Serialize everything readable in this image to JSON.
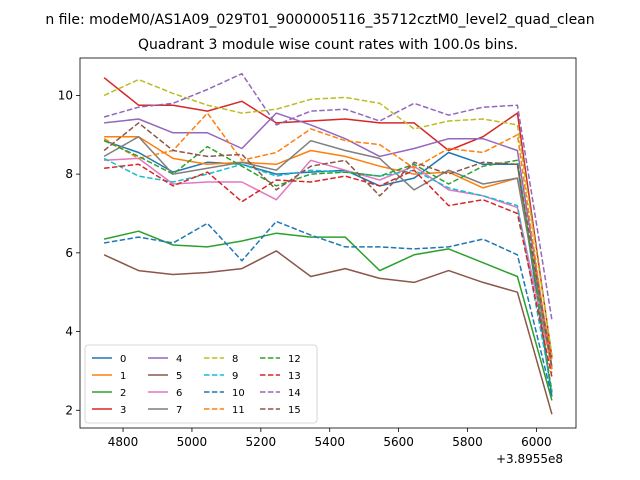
{
  "suptitle": "n file: modeM0/AS1A09_029T01_9000005116_35712cztM0_level2_quad_clean",
  "chart_data": {
    "type": "line",
    "title": "Quadrant 3 module wise count rates with 100.0s bins.",
    "xlabel": "",
    "ylabel": "",
    "x_offset_label": "+3.8955e8",
    "x": [
      4745,
      4845,
      4945,
      5045,
      5145,
      5245,
      5345,
      5445,
      5545,
      5645,
      5745,
      5845,
      5945,
      6045
    ],
    "xlim": [
      4675,
      6115
    ],
    "ylim": [
      1.55,
      10.95
    ],
    "xticks": [
      4800,
      5000,
      5200,
      5400,
      5600,
      5800,
      6000
    ],
    "yticks": [
      2,
      4,
      6,
      8,
      10
    ],
    "grid": false,
    "legend": {
      "placement": "lower-left",
      "columns": 4
    },
    "series": [
      {
        "name": "0",
        "color": "#1f77b4",
        "dash": "solid",
        "values": [
          8.85,
          8.55,
          8.05,
          8.3,
          8.25,
          8.0,
          8.05,
          8.1,
          7.7,
          7.9,
          8.55,
          8.25,
          8.25,
          2.35
        ]
      },
      {
        "name": "1",
        "color": "#ff7f0e",
        "dash": "solid",
        "values": [
          8.95,
          8.95,
          8.4,
          8.25,
          8.3,
          8.25,
          8.6,
          8.45,
          8.2,
          8.0,
          8.05,
          7.65,
          7.9,
          3.3
        ]
      },
      {
        "name": "2",
        "color": "#2ca02c",
        "dash": "solid",
        "values": [
          6.35,
          6.55,
          6.2,
          6.15,
          6.3,
          6.5,
          6.4,
          6.4,
          5.55,
          5.95,
          6.1,
          5.75,
          5.4,
          2.25
        ]
      },
      {
        "name": "3",
        "color": "#d62728",
        "dash": "solid",
        "values": [
          10.45,
          9.75,
          9.75,
          9.6,
          9.85,
          9.3,
          9.35,
          9.4,
          9.3,
          9.3,
          8.6,
          8.95,
          9.55,
          3.35
        ]
      },
      {
        "name": "4",
        "color": "#9467bd",
        "dash": "solid",
        "values": [
          9.3,
          9.4,
          9.05,
          9.05,
          8.65,
          9.55,
          9.25,
          8.9,
          8.45,
          8.65,
          8.9,
          8.9,
          8.6,
          3.1
        ]
      },
      {
        "name": "5",
        "color": "#8c564b",
        "dash": "solid",
        "values": [
          5.95,
          5.55,
          5.45,
          5.5,
          5.6,
          6.05,
          5.4,
          5.6,
          5.35,
          5.25,
          5.55,
          5.25,
          5.0,
          1.9
        ]
      },
      {
        "name": "6",
        "color": "#e377c2",
        "dash": "solid",
        "values": [
          8.35,
          8.4,
          7.75,
          7.8,
          7.8,
          7.35,
          8.35,
          8.1,
          7.85,
          8.2,
          7.6,
          7.45,
          7.15,
          3.1
        ]
      },
      {
        "name": "7",
        "color": "#7f7f7f",
        "dash": "solid",
        "values": [
          8.45,
          8.95,
          8.0,
          8.15,
          8.3,
          8.1,
          8.85,
          8.6,
          8.4,
          7.6,
          8.1,
          7.75,
          7.9,
          3.05
        ]
      },
      {
        "name": "8",
        "color": "#bcbd22",
        "dash": "dashed",
        "values": [
          10.0,
          10.4,
          10.05,
          9.75,
          9.55,
          9.65,
          9.9,
          9.95,
          9.8,
          9.15,
          9.35,
          9.4,
          9.25,
          3.4
        ]
      },
      {
        "name": "9",
        "color": "#17becf",
        "dash": "dashed",
        "values": [
          8.4,
          7.95,
          7.8,
          8.0,
          8.25,
          7.95,
          8.1,
          8.05,
          7.95,
          8.1,
          7.65,
          7.45,
          7.2,
          2.5
        ]
      },
      {
        "name": "10",
        "color": "#1f77b4",
        "dash": "dashed",
        "values": [
          6.25,
          6.4,
          6.25,
          6.75,
          5.8,
          6.8,
          6.45,
          6.15,
          6.15,
          6.1,
          6.15,
          6.35,
          5.95,
          2.35
        ]
      },
      {
        "name": "11",
        "color": "#ff7f0e",
        "dash": "dashed",
        "values": [
          8.9,
          8.4,
          8.6,
          9.55,
          8.35,
          8.55,
          9.15,
          8.85,
          8.75,
          8.15,
          8.65,
          8.55,
          9.0,
          2.95
        ]
      },
      {
        "name": "12",
        "color": "#2ca02c",
        "dash": "dashed",
        "values": [
          8.85,
          8.45,
          8.0,
          8.7,
          8.2,
          7.7,
          8.0,
          8.05,
          7.95,
          8.25,
          7.75,
          8.2,
          8.35,
          2.45
        ]
      },
      {
        "name": "13",
        "color": "#d62728",
        "dash": "dashed",
        "values": [
          8.15,
          8.25,
          7.7,
          8.05,
          7.3,
          7.85,
          7.8,
          7.95,
          7.7,
          8.1,
          7.2,
          7.35,
          7.0,
          2.85
        ]
      },
      {
        "name": "14",
        "color": "#9467bd",
        "dash": "dashed",
        "values": [
          9.45,
          9.7,
          9.8,
          10.15,
          10.55,
          9.25,
          9.6,
          9.65,
          9.35,
          9.8,
          9.5,
          9.7,
          9.75,
          4.3
        ]
      },
      {
        "name": "15",
        "color": "#8c564b",
        "dash": "dashed",
        "values": [
          8.6,
          9.3,
          8.6,
          8.45,
          8.5,
          7.6,
          8.2,
          8.35,
          7.45,
          8.3,
          8.0,
          8.3,
          8.25,
          3.1
        ]
      }
    ]
  }
}
